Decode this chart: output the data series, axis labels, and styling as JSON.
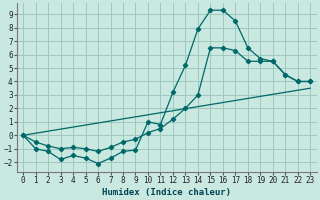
{
  "xlabel": "Humidex (Indice chaleur)",
  "bg_color": "#c8e8e0",
  "grid_color": "#a0c8c0",
  "line_color": "#006868",
  "xlim": [
    -0.5,
    23.5
  ],
  "ylim": [
    -2.7,
    9.8
  ],
  "xticks": [
    0,
    1,
    2,
    3,
    4,
    5,
    6,
    7,
    8,
    9,
    10,
    11,
    12,
    13,
    14,
    15,
    16,
    17,
    18,
    19,
    20,
    21,
    22,
    23
  ],
  "yticks": [
    -2,
    -1,
    0,
    1,
    2,
    3,
    4,
    5,
    6,
    7,
    8,
    9
  ],
  "line1_x": [
    0,
    1,
    2,
    3,
    4,
    5,
    6,
    7,
    8,
    9,
    10,
    11,
    12,
    13,
    14,
    15,
    16,
    17,
    18,
    19,
    20,
    21,
    22,
    23
  ],
  "line1_y": [
    0.0,
    -1.0,
    -1.2,
    -1.8,
    -1.5,
    -1.7,
    -2.1,
    -1.7,
    -1.2,
    -1.1,
    1.0,
    0.8,
    3.2,
    5.2,
    7.9,
    9.3,
    9.3,
    8.5,
    6.5,
    5.7,
    5.5,
    4.5,
    4.0,
    4.0
  ],
  "line2_x": [
    0,
    1,
    2,
    3,
    4,
    5,
    6,
    7,
    8,
    9,
    10,
    11,
    12,
    13,
    14,
    15,
    16,
    17,
    18,
    19,
    20,
    21,
    22,
    23
  ],
  "line2_y": [
    0.0,
    -0.5,
    -0.8,
    -1.0,
    -0.9,
    -1.0,
    -1.2,
    -0.9,
    -0.5,
    -0.3,
    0.2,
    0.5,
    1.2,
    2.0,
    3.0,
    6.5,
    6.5,
    6.3,
    5.5,
    5.5,
    5.5,
    4.5,
    4.0,
    4.0
  ],
  "line3_x": [
    0,
    23
  ],
  "line3_y": [
    0.0,
    3.5
  ]
}
